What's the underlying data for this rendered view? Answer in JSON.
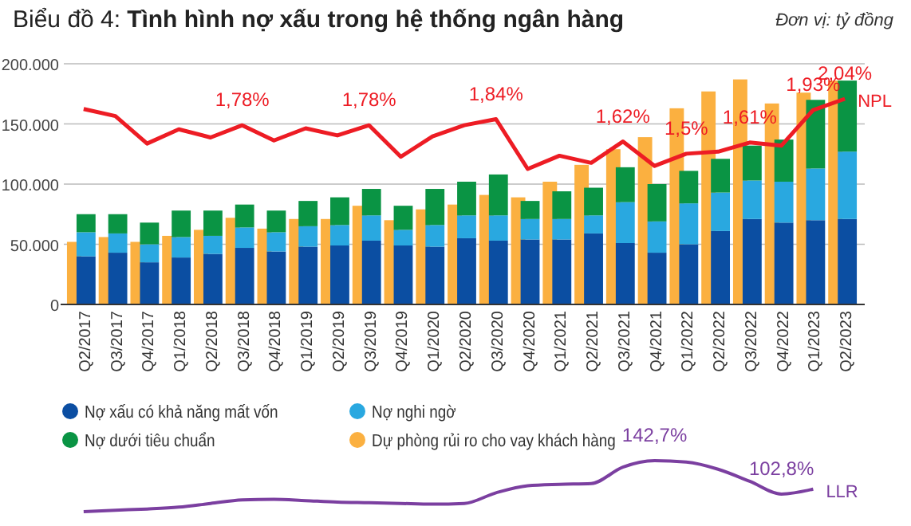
{
  "chart_data": [
    {
      "type": "bar",
      "title": "Biểu đồ 4: Tình hình nợ xấu trong hệ thống ngân hàng",
      "subtitle": "Đơn vị: tỷ đồng",
      "categories": [
        "Q2/2017",
        "Q3/2017",
        "Q4/2017",
        "Q1/2018",
        "Q2/2018",
        "Q3/2018",
        "Q4/2018",
        "Q1/2019",
        "Q2/2019",
        "Q3/2019",
        "Q4/2019",
        "Q1/2020",
        "Q2/2020",
        "Q3/2020",
        "Q4/2020",
        "Q1/2021",
        "Q2/2021",
        "Q3/2021",
        "Q4/2021",
        "Q1/2022",
        "Q2/2022",
        "Q3/2022",
        "Q4/2022",
        "Q1/2023",
        "Q2/2023"
      ],
      "series": [
        {
          "name": "Nợ xấu có khả năng mất vốn",
          "color": "#0b4ea2",
          "values": [
            40000,
            43000,
            35000,
            39000,
            42000,
            47000,
            44000,
            48000,
            49000,
            53000,
            49000,
            48000,
            55000,
            53000,
            54000,
            54000,
            59000,
            51000,
            43000,
            50000,
            61000,
            71000,
            68000,
            70000,
            71000
          ]
        },
        {
          "name": "Nợ nghi ngờ",
          "color": "#29a8e0",
          "values": [
            20000,
            16000,
            15000,
            17000,
            15000,
            17000,
            16000,
            17000,
            17000,
            21000,
            13000,
            18000,
            19000,
            21000,
            17000,
            17000,
            15000,
            34000,
            26000,
            34000,
            32000,
            32000,
            34000,
            43000,
            56000
          ]
        },
        {
          "name": "Nợ dưới tiêu chuẩn",
          "color": "#0a9444",
          "values": [
            15000,
            16000,
            18000,
            22000,
            21000,
            19000,
            18000,
            21000,
            23000,
            22000,
            20000,
            30000,
            28000,
            34000,
            15000,
            23000,
            23000,
            29000,
            31000,
            27000,
            28000,
            29000,
            35000,
            57000,
            59000
          ]
        },
        {
          "type": "line",
          "axis": "y2",
          "name": "NPL",
          "color": "#ed1c24",
          "values": [
            1.94,
            1.87,
            1.6,
            1.74,
            1.66,
            1.78,
            1.63,
            1.75,
            1.68,
            1.78,
            1.47,
            1.67,
            1.78,
            1.84,
            1.35,
            1.48,
            1.41,
            1.62,
            1.38,
            1.5,
            1.52,
            1.61,
            1.58,
            1.93,
            2.04
          ],
          "value_labels": [
            null,
            null,
            null,
            null,
            null,
            "1,78%",
            null,
            null,
            null,
            "1,78%",
            null,
            null,
            null,
            "1,84%",
            null,
            null,
            null,
            "1,62%",
            null,
            "1,5%",
            null,
            "1,61%",
            null,
            "1,93%",
            "2,04%"
          ]
        }
      ],
      "stacked": true,
      "ylim": [
        0,
        200000
      ],
      "yticks": [
        {
          "value": 0,
          "label": "0"
        },
        {
          "value": 50000,
          "label": "50.000"
        },
        {
          "value": 100000,
          "label": "100.000"
        },
        {
          "value": 150000,
          "label": "150.000"
        },
        {
          "value": 200000,
          "label": "200.000"
        }
      ],
      "legend": "bottom"
    },
    {
      "type": "bar",
      "categories": [
        null,
        null,
        null,
        null,
        null,
        null,
        null,
        null,
        null,
        null,
        null,
        null,
        null,
        null,
        null,
        null,
        null,
        null,
        null,
        null,
        null,
        null,
        null,
        null,
        null
      ],
      "series": [
        {
          "name": "Dự phòng rủi ro cho vay khách hàng",
          "color": "#fbb040",
          "values": [
            52000,
            56000,
            52000,
            57000,
            62000,
            72000,
            63000,
            71000,
            71000,
            82000,
            70000,
            79000,
            83000,
            91000,
            89000,
            102000,
            116000,
            129000,
            139000,
            163000,
            177000,
            187000,
            167000,
            176000,
            186000
          ]
        }
      ],
      "ylim": [
        0,
        200000
      ],
      "yticks": [
        0,
        50000,
        100000,
        150000,
        200000
      ],
      "grid": "y",
      "tick_labels": false,
      "legend": "bottom"
    },
    {
      "type": "line",
      "categories": [
        null,
        null,
        null,
        null,
        null,
        null,
        null,
        null,
        null,
        null,
        null,
        null,
        null,
        null,
        null,
        null,
        null,
        null,
        null,
        null,
        null,
        null,
        null,
        null,
        null
      ],
      "series": [
        {
          "name": "LLR",
          "color": "#7b3fa0",
          "values": [
            81.8,
            83.5,
            85,
            87.2,
            91.6,
            95.8,
            96.6,
            95,
            93.3,
            92.5,
            91.6,
            90.8,
            91.6,
            104.3,
            112.7,
            114.4,
            115.3,
            135,
            142.7,
            141,
            132.5,
            118,
            102.8,
            108.7,
            null
          ],
          "value_labels": [
            null,
            null,
            null,
            null,
            null,
            null,
            null,
            null,
            null,
            null,
            null,
            null,
            null,
            null,
            null,
            null,
            null,
            null,
            "142,7%",
            null,
            null,
            null,
            "102,8%",
            null,
            null
          ]
        }
      ],
      "tick_labels": false
    }
  ]
}
